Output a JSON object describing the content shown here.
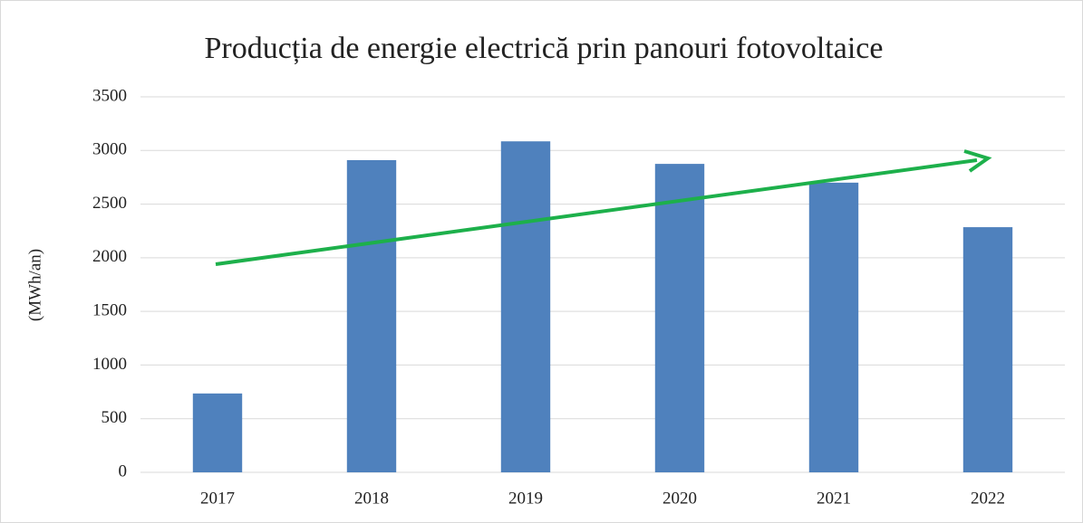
{
  "chart_data": {
    "type": "bar",
    "title": "Producția de energie electrică prin panouri fotovoltaice",
    "y_label": "(MWh/an)",
    "categories": [
      "2017",
      "2018",
      "2019",
      "2020",
      "2021",
      "2022"
    ],
    "values": [
      735,
      2910,
      3085,
      2875,
      2700,
      2285
    ],
    "color": "#4f81bd",
    "ylim": [
      0,
      3500
    ],
    "yticks": [
      0,
      500,
      1000,
      1500,
      2000,
      2500,
      3000,
      3500
    ],
    "grid": true
  }
}
